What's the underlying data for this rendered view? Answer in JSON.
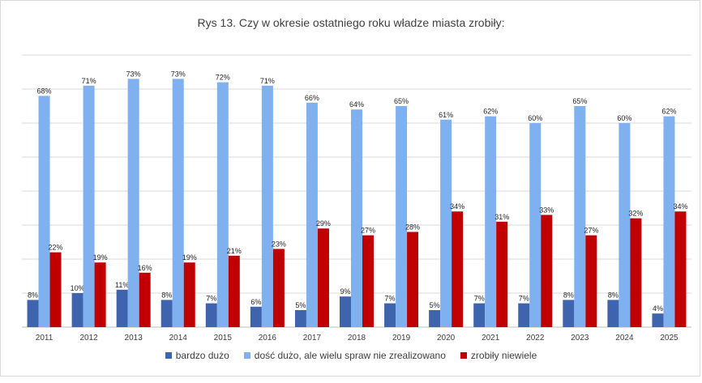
{
  "chart_data": {
    "type": "bar",
    "title": "Rys 13. Czy w okresie ostatniego roku władze miasta zrobiły:",
    "categories": [
      "2011",
      "2012",
      "2013",
      "2014",
      "2015",
      "2016",
      "2017",
      "2018",
      "2019",
      "2020",
      "2021",
      "2022",
      "2023",
      "2024",
      "2025"
    ],
    "series": [
      {
        "name": "bardzo dużo",
        "color": "#3f64ae",
        "values": [
          8,
          10,
          11,
          8,
          7,
          6,
          5,
          9,
          7,
          5,
          7,
          7,
          8,
          8,
          4
        ]
      },
      {
        "name": "dość dużo, ale wielu spraw nie zrealizowano",
        "color": "#7fb0f0",
        "values": [
          68,
          71,
          73,
          73,
          72,
          71,
          66,
          64,
          65,
          61,
          62,
          60,
          65,
          60,
          62
        ]
      },
      {
        "name": "zrobiły niewiele",
        "color": "#c00000",
        "values": [
          22,
          19,
          16,
          19,
          21,
          23,
          29,
          27,
          28,
          34,
          31,
          33,
          27,
          32,
          34
        ]
      }
    ],
    "ylim": [
      0,
      80
    ],
    "value_suffix": "%",
    "grid": true,
    "legend_position": "bottom"
  }
}
